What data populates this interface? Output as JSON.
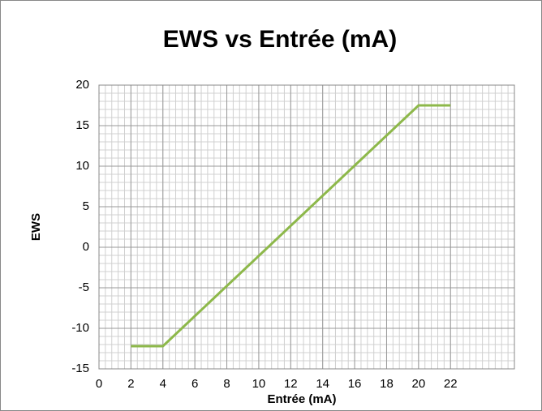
{
  "chart_data": {
    "type": "line",
    "title": "EWS vs Entrée (mA)",
    "x_label": "Entrée (mA)",
    "y_label": "EWS",
    "x": [
      2,
      4,
      20,
      22
    ],
    "series": [
      {
        "name": "EWS",
        "color": "#8db84a",
        "values": [
          -12.2,
          -12.2,
          17.5,
          17.5
        ]
      }
    ],
    "xlim": [
      0,
      26
    ],
    "xticks": [
      0,
      2,
      4,
      6,
      8,
      10,
      12,
      14,
      16,
      18,
      20,
      22
    ],
    "ylim": [
      -15,
      20
    ],
    "yticks": [
      -15,
      -10,
      -5,
      0,
      5,
      10,
      15,
      20
    ],
    "grid": true
  }
}
